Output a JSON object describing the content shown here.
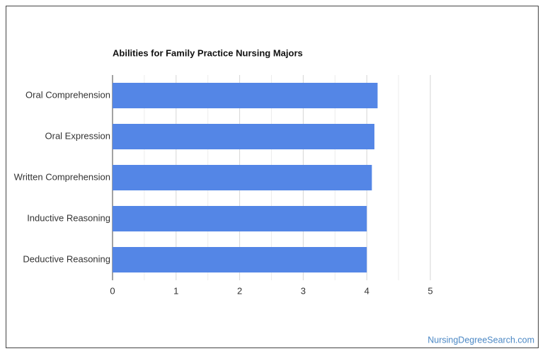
{
  "chart_data": {
    "type": "barh",
    "title": "Abilities for Family Practice Nursing Majors",
    "categories": [
      "Oral Comprehension",
      "Oral Expression",
      "Written Comprehension",
      "Inductive Reasoning",
      "Deductive Reasoning"
    ],
    "values": [
      4.17,
      4.12,
      4.08,
      4.0,
      4.0
    ],
    "color": "#5486e6",
    "xlim": [
      0,
      5
    ],
    "xticks": [
      0,
      1,
      2,
      3,
      4,
      5
    ],
    "xminor": [
      0.5,
      1.5,
      2.5,
      3.5,
      4.5
    ],
    "grid": true
  },
  "footer": {
    "source": "NursingDegreeSearch.com"
  }
}
